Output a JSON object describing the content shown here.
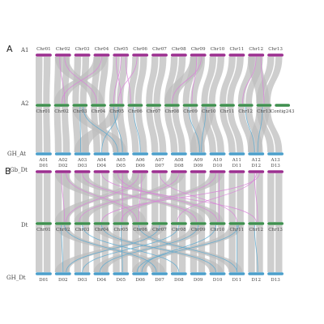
{
  "panels": [
    {
      "label": "A"
    },
    {
      "label": "B"
    }
  ],
  "colors": {
    "purple": "#9b2f8f",
    "green": "#3f8f4f",
    "blue": "#4b9fcb",
    "grey": "#bdbdbd",
    "pink": "#d982d9",
    "cyan": "#5ba9d0"
  },
  "tracks": [
    {
      "key": "a1",
      "name": "A1",
      "color": "#9b2f8f",
      "label_side": "above",
      "chromosomes": [
        "Chr01",
        "Chr02",
        "Chr03",
        "Chr04",
        "Chr05",
        "Chr06",
        "Chr07",
        "Chr08",
        "Chr09",
        "Chr10",
        "Chr11",
        "Chr12",
        "Chr13"
      ]
    },
    {
      "key": "a2",
      "name": "A2",
      "color": "#3f8f4f",
      "label_side": "below",
      "chromosomes": [
        "Chr01",
        "Chr02",
        "Chr03",
        "Chr04",
        "Chr05",
        "Chr06",
        "Chr07",
        "Chr08",
        "Chr09",
        "Chr10",
        "Chr11",
        "Chr12",
        "Chr13",
        "Contig243"
      ]
    },
    {
      "key": "ghat",
      "name": "GH_At",
      "color": "#4b9fcb",
      "label_side": "below",
      "chromosomes": [
        "A01",
        "A02",
        "A03",
        "A04",
        "A05",
        "A06",
        "A07",
        "A08",
        "A09",
        "A10",
        "A11",
        "A12",
        "A13"
      ]
    },
    {
      "key": "gbdt",
      "name": "Gb_Dt",
      "color": "#9b2f8f",
      "label_side": "above",
      "chromosomes": [
        "D01",
        "D02",
        "D03",
        "D04",
        "D05",
        "D06",
        "D07",
        "D08",
        "D09",
        "D10",
        "D11",
        "D12",
        "D13"
      ]
    },
    {
      "key": "dt",
      "name": "Dt",
      "color": "#3f8f4f",
      "label_side": "below",
      "chromosomes": [
        "Chr01",
        "Chr02",
        "Chr03",
        "Chr04",
        "Chr05",
        "Chr06",
        "Chr07",
        "Chr08",
        "Chr09",
        "Chr10",
        "Chr11",
        "Chr12",
        "Chr13"
      ]
    },
    {
      "key": "ghdt",
      "name": "GH_Dt",
      "color": "#4b9fcb",
      "label_side": "below",
      "chromosomes": [
        "D01",
        "D02",
        "D03",
        "D04",
        "D05",
        "D06",
        "D07",
        "D08",
        "D09",
        "D10",
        "D11",
        "D12",
        "D13"
      ]
    }
  ]
}
